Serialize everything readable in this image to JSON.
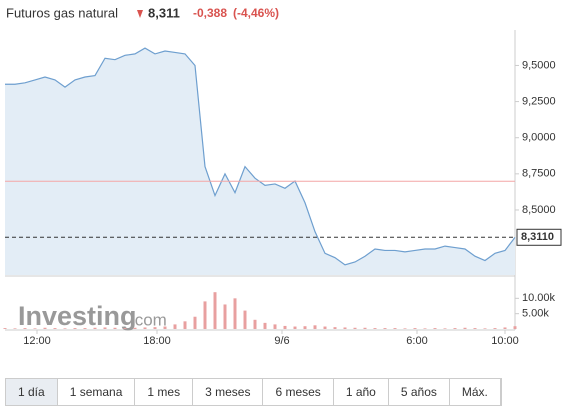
{
  "header": {
    "title": "Futuros gas natural",
    "price": "8,311",
    "change": "-0,388",
    "change_pct": "(-4,46%)"
  },
  "watermark": {
    "brand": "Investing",
    "suffix": ".com"
  },
  "chart_data": {
    "type": "line",
    "series": [
      {
        "name": "Precio",
        "color": "#6e9fcf",
        "fill": "#e3edf6",
        "values": [
          9.37,
          9.37,
          9.38,
          9.4,
          9.42,
          9.4,
          9.35,
          9.4,
          9.42,
          9.43,
          9.55,
          9.54,
          9.57,
          9.58,
          9.62,
          9.58,
          9.6,
          9.59,
          9.58,
          9.5,
          8.8,
          8.6,
          8.75,
          8.62,
          8.8,
          8.72,
          8.67,
          8.68,
          8.65,
          8.7,
          8.55,
          8.35,
          8.2,
          8.17,
          8.12,
          8.14,
          8.18,
          8.23,
          8.22,
          8.22,
          8.21,
          8.22,
          8.23,
          8.23,
          8.25,
          8.24,
          8.23,
          8.18,
          8.15,
          8.2,
          8.22,
          8.31
        ]
      }
    ],
    "xlim": [
      0,
      51
    ],
    "xticks": [
      {
        "value": 3.2,
        "label": "12:00"
      },
      {
        "value": 15.2,
        "label": "18:00"
      },
      {
        "value": 27.7,
        "label": "9/6"
      },
      {
        "value": 41.2,
        "label": "6:00"
      },
      {
        "value": 50,
        "label": "10:00"
      }
    ],
    "ylim": [
      8.05,
      9.69
    ],
    "yticks": [
      {
        "value": 9.5,
        "label": "9,5000"
      },
      {
        "value": 9.25,
        "label": "9,2500"
      },
      {
        "value": 9.0,
        "label": "9,0000"
      },
      {
        "value": 8.75,
        "label": "8,7500"
      },
      {
        "value": 8.5,
        "label": "8,5000"
      }
    ],
    "prev_close": 8.699,
    "prev_close_color": "#f4a6a6",
    "last_price": {
      "value": 8.311,
      "label": "8,3110"
    },
    "volume": {
      "color": "#e8a0a0",
      "ylim": [
        0,
        15000
      ],
      "yticks": [
        {
          "value": 10000,
          "label": "10.00k"
        },
        {
          "value": 5000,
          "label": "5.00k"
        }
      ],
      "values": [
        300,
        200,
        300,
        200,
        400,
        300,
        200,
        300,
        300,
        400,
        500,
        400,
        300,
        400,
        500,
        600,
        800,
        1500,
        2500,
        4000,
        9000,
        12000,
        8000,
        10000,
        6000,
        3000,
        2000,
        1500,
        1000,
        800,
        900,
        1200,
        800,
        600,
        500,
        400,
        400,
        300,
        300,
        300,
        200,
        300,
        200,
        300,
        200,
        300,
        400,
        300,
        200,
        300,
        500,
        900
      ]
    }
  },
  "ranges": [
    "1 día",
    "1 semana",
    "1 mes",
    "3 meses",
    "6 meses",
    "1 año",
    "5 años",
    "Máx."
  ]
}
